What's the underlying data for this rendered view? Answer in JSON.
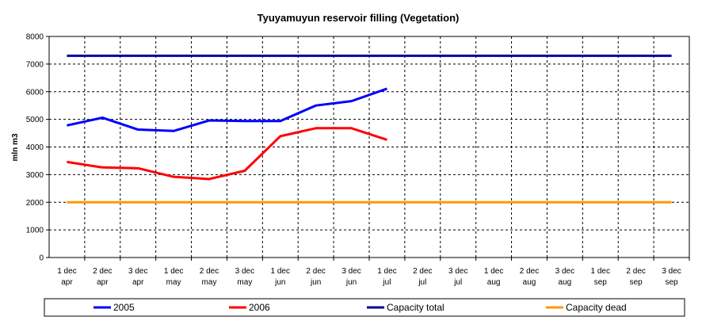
{
  "chart_data": {
    "type": "line",
    "title": "Tyuyamuyun reservoir filling (Vegetation)",
    "xlabel": "",
    "ylabel": "mln m3",
    "ylim": [
      0,
      8000
    ],
    "yticks": [
      0,
      1000,
      2000,
      3000,
      4000,
      5000,
      6000,
      7000,
      8000
    ],
    "grid": true,
    "legend_position": "bottom",
    "categories": [
      [
        "1 dec",
        "apr"
      ],
      [
        "2 dec",
        "apr"
      ],
      [
        "3 dec",
        "apr"
      ],
      [
        "1 dec",
        "may"
      ],
      [
        "2 dec",
        "may"
      ],
      [
        "3 dec",
        "may"
      ],
      [
        "1 dec",
        "jun"
      ],
      [
        "2 dec",
        "jun"
      ],
      [
        "3 dec",
        "jun"
      ],
      [
        "1 dec",
        "jul"
      ],
      [
        "2 dec",
        "jul"
      ],
      [
        "3 dec",
        "jul"
      ],
      [
        "1 dec",
        "aug"
      ],
      [
        "2 dec",
        "aug"
      ],
      [
        "3 dec",
        "aug"
      ],
      [
        "1 dec",
        "sep"
      ],
      [
        "2 dec",
        "sep"
      ],
      [
        "3 dec",
        "sep"
      ]
    ],
    "series": [
      {
        "name": "2005",
        "color": "#0000FF",
        "values": [
          4780,
          5060,
          4630,
          4580,
          4960,
          4940,
          4940,
          5500,
          5660,
          6110,
          null,
          null,
          null,
          null,
          null,
          null,
          null,
          null
        ]
      },
      {
        "name": "2006",
        "color": "#FF0000",
        "values": [
          3460,
          3260,
          3230,
          2920,
          2840,
          3140,
          4390,
          4680,
          4680,
          4260,
          null,
          null,
          null,
          null,
          null,
          null,
          null,
          null
        ]
      },
      {
        "name": "Capacity total",
        "color": "#000099",
        "values": [
          7300,
          7300,
          7300,
          7300,
          7300,
          7300,
          7300,
          7300,
          7300,
          7300,
          7300,
          7300,
          7300,
          7300,
          7300,
          7300,
          7300,
          7300
        ]
      },
      {
        "name": "Capacity dead",
        "color": "#FF9900",
        "values": [
          2000,
          2000,
          2000,
          2000,
          2000,
          2000,
          2000,
          2000,
          2000,
          2000,
          2000,
          2000,
          2000,
          2000,
          2000,
          2000,
          2000,
          2000
        ]
      }
    ]
  }
}
